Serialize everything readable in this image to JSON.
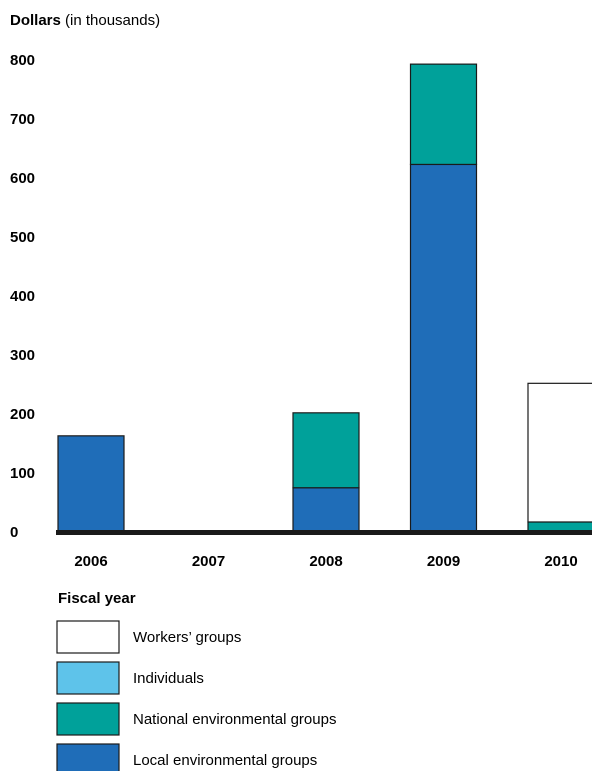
{
  "chart_data": {
    "type": "bar",
    "stacked": true,
    "ylabel_bold": "Dollars",
    "ylabel_rest": " (in thousands)",
    "xlabel": "Fiscal year",
    "categories": [
      "2006",
      "2007",
      "2008",
      "2009",
      "2010"
    ],
    "ylim": [
      0,
      800
    ],
    "yticks": [
      0,
      100,
      200,
      300,
      400,
      500,
      600,
      700,
      800
    ],
    "grid": false,
    "legend_position": "bottom",
    "series": [
      {
        "name": "Local environmental groups",
        "color": "#1f6db8",
        "values": [
          163,
          0,
          75,
          623,
          0
        ]
      },
      {
        "name": "National environmental groups",
        "color": "#00a19a",
        "values": [
          0,
          0,
          127,
          170,
          17
        ]
      },
      {
        "name": "Individuals",
        "color": "#5ec3ea",
        "values": [
          0,
          0,
          0,
          0,
          0
        ]
      },
      {
        "name": "Workers’ groups",
        "color": "#ffffff",
        "values": [
          0,
          0,
          0,
          0,
          235
        ]
      }
    ],
    "legend_order": [
      3,
      2,
      1,
      0
    ]
  }
}
